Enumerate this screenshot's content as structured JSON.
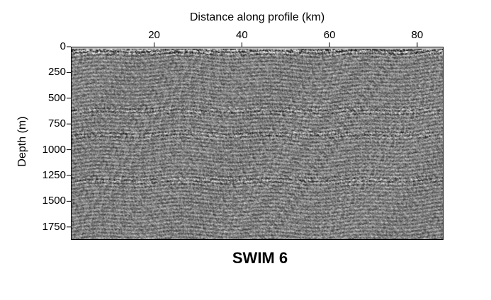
{
  "chart_data": {
    "type": "heatmap",
    "xlabel": "Distance along profile (km)",
    "ylabel": "Depth (m)",
    "xlim": [
      1,
      86
    ],
    "ylim": [
      1875,
      0
    ],
    "x_ticks": [
      20,
      40,
      60,
      80
    ],
    "y_ticks": [
      0,
      250,
      500,
      750,
      1000,
      1250,
      1500,
      1750
    ],
    "x_axis_position": "top",
    "colormap": "grayscale",
    "caption": "SWIM 6",
    "reflectors_depth_m": [
      30,
      620,
      850,
      1300
    ]
  },
  "colors": {
    "background": "#ffffff",
    "frame": "#000000",
    "seismic_mid": "#808080"
  }
}
